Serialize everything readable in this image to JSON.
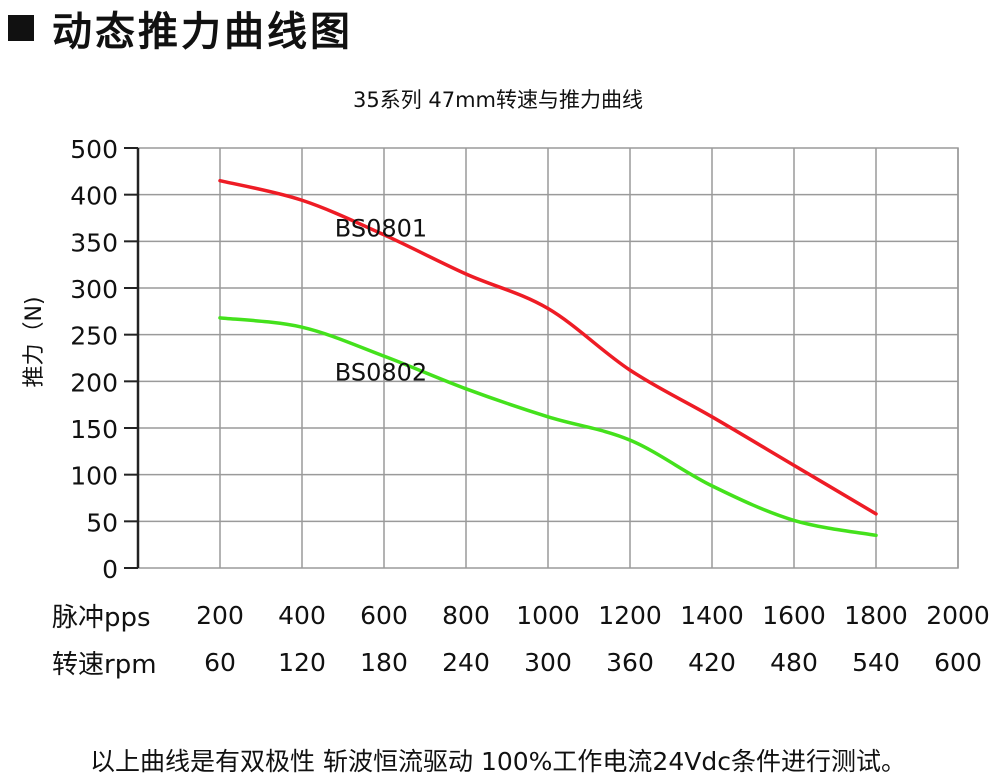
{
  "heading": {
    "text": "动态推力曲线图"
  },
  "chart_data": {
    "type": "line",
    "title": "35系列 47mm转速与推力曲线",
    "xlabel": "",
    "ylabel": "推力（N)",
    "ylim": [
      0,
      450
    ],
    "yticks": [
      "0",
      "50",
      "100",
      "150",
      "200",
      "250",
      "300",
      "350",
      "400",
      "500"
    ],
    "x_row1_label": "脉冲pps",
    "x_row1_ticks": [
      "200",
      "400",
      "600",
      "800",
      "1000",
      "1200",
      "1400",
      "1600",
      "1800",
      "2000"
    ],
    "x_row2_label": "转速rpm",
    "x_row2_ticks": [
      "60",
      "120",
      "180",
      "240",
      "300",
      "360",
      "420",
      "480",
      "540",
      "600"
    ],
    "x": [
      200,
      400,
      600,
      800,
      1000,
      1200,
      1400,
      1600,
      1800
    ],
    "series": [
      {
        "name": "BS0801",
        "color": "#ee1c25",
        "values": [
          415,
          394,
          357,
          315,
          278,
          212,
          162,
          110,
          58
        ]
      },
      {
        "name": "BS0802",
        "color": "#44e11c",
        "values": [
          268,
          258,
          227,
          192,
          162,
          137,
          88,
          51,
          35
        ]
      }
    ],
    "grid": true
  },
  "footnote": "以上曲线是有双极性 斩波恒流驱动 100%工作电流24Vdc条件进行测试。"
}
